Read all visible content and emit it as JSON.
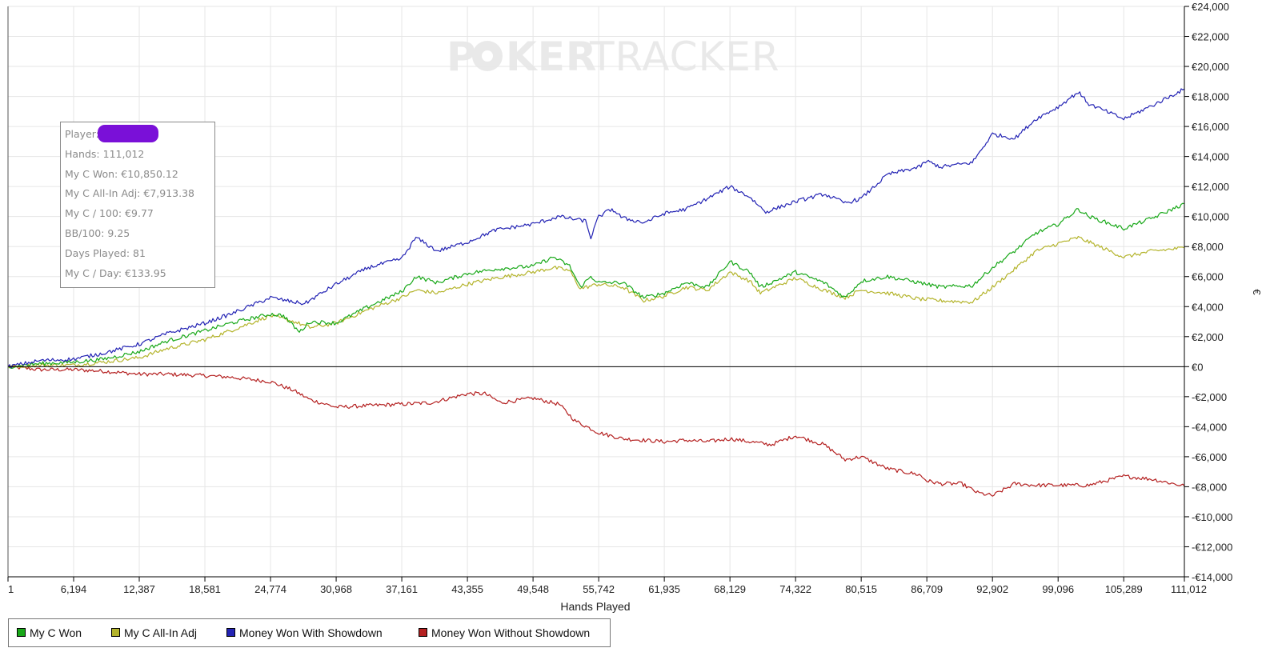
{
  "watermark": {
    "left": "P",
    "mid": "KER",
    "right": "TRACKER"
  },
  "info_box": {
    "player_label": "Player:",
    "lines": [
      "Hands: 111,012",
      "My C Won: €10,850.12",
      "My C All-In Adj: €7,913.38",
      "My C / 100: €9.77",
      "BB/100: 9.25",
      "Days Played: 81",
      "My C / Day: €133.95"
    ]
  },
  "chart_data": {
    "type": "line",
    "title": "",
    "xlabel": "Hands Played",
    "ylabel": "€",
    "xlim": [
      1,
      111012
    ],
    "ylim": [
      -14000,
      24000
    ],
    "y_ticks": [
      24000,
      22000,
      20000,
      18000,
      16000,
      14000,
      12000,
      10000,
      8000,
      6000,
      4000,
      2000,
      0,
      -2000,
      -4000,
      -6000,
      -8000,
      -10000,
      -12000,
      -14000
    ],
    "y_tick_labels": [
      "€24,000",
      "€22,000",
      "€20,000",
      "€18,000",
      "€16,000",
      "€14,000",
      "€12,000",
      "€10,000",
      "€8,000",
      "€6,000",
      "€4,000",
      "€2,000",
      "€0",
      "-€2,000",
      "-€4,000",
      "-€6,000",
      "-€8,000",
      "-€10,000",
      "-€12,000",
      "-€14,000"
    ],
    "x_ticks": [
      1,
      6194,
      12387,
      18581,
      24774,
      30968,
      37161,
      43355,
      49548,
      55742,
      61935,
      68129,
      74322,
      80515,
      86709,
      92902,
      99096,
      105289,
      111012
    ],
    "x_tick_labels": [
      "1",
      "6,194",
      "12,387",
      "18,581",
      "24,774",
      "30,968",
      "37,161",
      "43,355",
      "49,548",
      "55,742",
      "61,935",
      "68,129",
      "74,322",
      "80,515",
      "86,709",
      "92,902",
      "99,096",
      "105,289",
      "111,012"
    ],
    "grid": true,
    "legend_position": "bottom-left",
    "series": [
      {
        "name": "Money Won With Showdown",
        "color": "#2323b4",
        "x": [
          1,
          3000,
          6194,
          9000,
          12387,
          15000,
          18581,
          21000,
          24774,
          27000,
          28000,
          30968,
          34000,
          37161,
          38500,
          40500,
          43355,
          46000,
          49548,
          52000,
          54500,
          55000,
          55742,
          57000,
          58000,
          60000,
          61935,
          64000,
          66000,
          68129,
          70000,
          71500,
          74322,
          77000,
          79000,
          80515,
          83000,
          86000,
          86709,
          88000,
          91000,
          92902,
          95000,
          97000,
          99096,
          101000,
          102000,
          105289,
          108000,
          111012
        ],
        "y": [
          0,
          400,
          500,
          900,
          1500,
          2200,
          2900,
          3500,
          4600,
          4300,
          4200,
          5500,
          6600,
          7200,
          8600,
          7700,
          8300,
          9100,
          9500,
          10000,
          9700,
          8600,
          10000,
          10500,
          9900,
          9600,
          10200,
          10500,
          11200,
          12000,
          11300,
          10300,
          11000,
          11500,
          10900,
          11200,
          12800,
          13300,
          13700,
          13300,
          13600,
          15500,
          15200,
          16500,
          17300,
          18300,
          17500,
          16500,
          17400,
          18500
        ]
      },
      {
        "name": "My C Won",
        "color": "#18a818",
        "x": [
          1,
          3000,
          6194,
          9000,
          12387,
          15000,
          18581,
          21000,
          24774,
          26000,
          27500,
          28500,
          30968,
          34000,
          37161,
          38500,
          40500,
          43355,
          46000,
          49548,
          51500,
          53000,
          54000,
          55000,
          55742,
          58000,
          60000,
          61935,
          64000,
          66000,
          68129,
          70000,
          71000,
          74322,
          77000,
          79000,
          80515,
          83000,
          86000,
          88000,
          91000,
          92902,
          95000,
          97000,
          99096,
          101000,
          102000,
          105289,
          108000,
          111012
        ],
        "y": [
          0,
          200,
          300,
          500,
          1000,
          1700,
          2400,
          2900,
          3500,
          3400,
          2300,
          3000,
          2900,
          4000,
          5000,
          6000,
          5600,
          6200,
          6500,
          6700,
          7300,
          6700,
          5300,
          6000,
          5600,
          5600,
          4600,
          4900,
          5600,
          5300,
          7000,
          6300,
          5300,
          6300,
          5600,
          4600,
          5700,
          6000,
          5600,
          5300,
          5400,
          6600,
          7700,
          8900,
          9500,
          10500,
          10000,
          9200,
          9900,
          10850
        ]
      },
      {
        "name": "My C All-In Adj",
        "color": "#b4b42c",
        "x": [
          1,
          3000,
          6194,
          9000,
          12387,
          15000,
          18581,
          21000,
          24774,
          27000,
          28500,
          30968,
          34000,
          37161,
          38500,
          40500,
          43355,
          46000,
          49548,
          51500,
          53000,
          54000,
          55742,
          58000,
          60000,
          61935,
          64000,
          66000,
          68129,
          70000,
          71000,
          74322,
          77000,
          79000,
          80515,
          83000,
          86000,
          88000,
          91000,
          92902,
          95000,
          97000,
          99096,
          101000,
          102000,
          105289,
          108000,
          111012
        ],
        "y": [
          0,
          100,
          100,
          300,
          600,
          1200,
          1800,
          2400,
          3400,
          3000,
          2600,
          2900,
          3800,
          4600,
          5100,
          4900,
          5500,
          5900,
          6300,
          6600,
          6400,
          5200,
          5500,
          5300,
          4400,
          4700,
          5300,
          5100,
          6300,
          5700,
          4900,
          5900,
          5100,
          4600,
          5100,
          4900,
          4500,
          4400,
          4300,
          5300,
          6500,
          7700,
          8200,
          8600,
          8300,
          7300,
          7700,
          7913
        ]
      },
      {
        "name": "Money Won Without Showdown",
        "color": "#b42020",
        "x": [
          1,
          3000,
          6194,
          9000,
          12387,
          15000,
          18581,
          21000,
          24774,
          27000,
          28500,
          30968,
          34000,
          37161,
          40000,
          43355,
          45000,
          46500,
          49548,
          52000,
          53500,
          55742,
          58000,
          61935,
          64000,
          66000,
          68129,
          70000,
          72000,
          74322,
          77000,
          79000,
          80515,
          83000,
          86000,
          86709,
          88000,
          90000,
          91500,
          92902,
          95000,
          97000,
          99096,
          102000,
          105289,
          108000,
          111012
        ],
        "y": [
          0,
          -200,
          -200,
          -300,
          -500,
          -500,
          -600,
          -700,
          -1000,
          -1600,
          -2200,
          -2700,
          -2600,
          -2500,
          -2400,
          -1800,
          -1800,
          -2400,
          -2100,
          -2500,
          -3600,
          -4400,
          -4800,
          -5000,
          -4900,
          -5000,
          -4800,
          -5000,
          -5200,
          -4600,
          -5200,
          -6200,
          -6000,
          -6800,
          -7200,
          -7600,
          -7800,
          -7800,
          -8400,
          -8600,
          -7800,
          -7900,
          -7900,
          -7900,
          -7300,
          -7500,
          -7950
        ]
      }
    ]
  },
  "legend": {
    "items": [
      {
        "label": "My C Won",
        "color": "#18a818"
      },
      {
        "label": "My C All-In Adj",
        "color": "#b4b42c"
      },
      {
        "label": "Money Won With Showdown",
        "color": "#2323b4"
      },
      {
        "label": "Money Won Without Showdown",
        "color": "#b42020"
      }
    ]
  }
}
